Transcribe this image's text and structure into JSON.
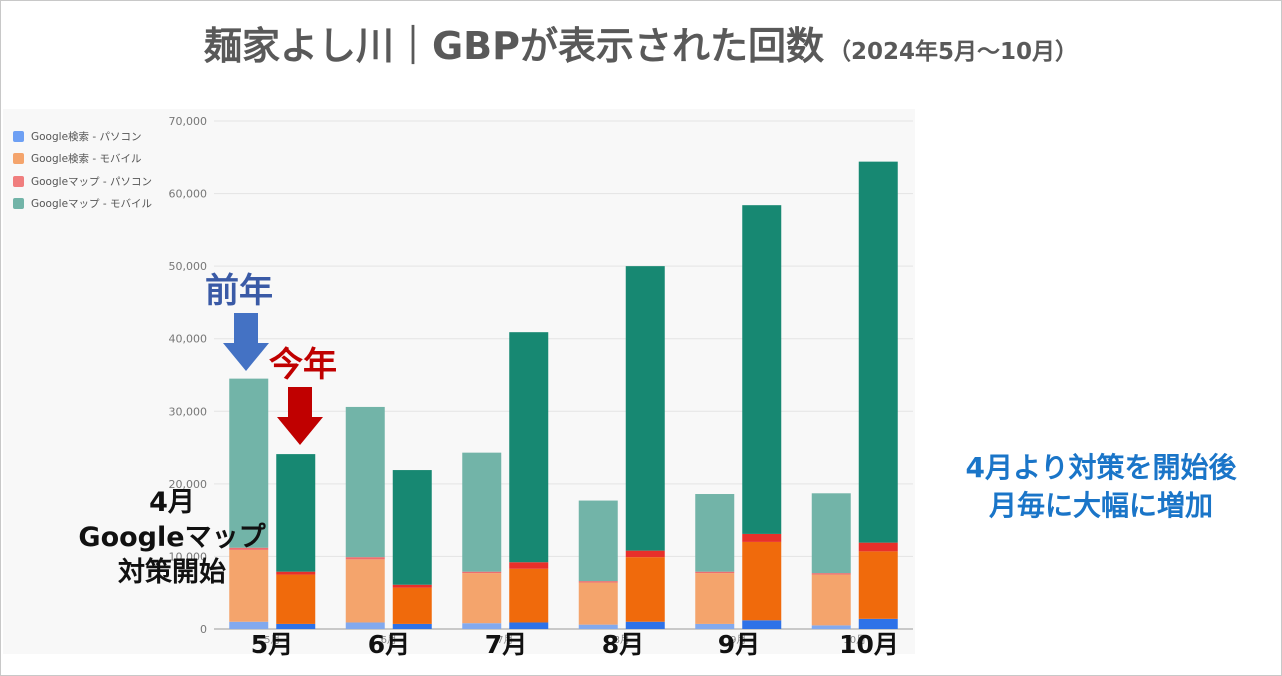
{
  "title": {
    "main": "麺家よし川｜GBPが表示された回数",
    "sub": "（2024年5月～10月）"
  },
  "annotations": {
    "prev_year": "前年",
    "this_year": "今年",
    "left_note": [
      "4月",
      "Googleマップ",
      "対策開始"
    ],
    "right_note": [
      "4月より対策を開始後",
      "月毎に大幅に増加"
    ]
  },
  "month_labels": [
    "5月",
    "6月",
    "7月",
    "8月",
    "9月",
    "10月"
  ],
  "colors": {
    "arrow_prev": "#4472c4",
    "arrow_this": "#c00000",
    "prev_year_series": [
      "#82a9ee",
      "#f4a46c",
      "#ee6e6e",
      "#72b4a8"
    ],
    "this_year_series": [
      "#2e72e8",
      "#f06a0c",
      "#e8302a",
      "#178872"
    ]
  },
  "chart_data": {
    "type": "bar",
    "stacked": true,
    "grouped_by": "year",
    "categories": [
      "5月",
      "6月",
      "7月",
      "8月",
      "9月",
      "10月"
    ],
    "groups": [
      "前年",
      "今年"
    ],
    "ylim": [
      0,
      70000
    ],
    "yticks": [
      "0",
      "10,000",
      "20,000",
      "30,000",
      "40,000",
      "50,000",
      "60,000",
      "70,000"
    ],
    "x_tick_labels": [
      "5月",
      "6月",
      "7月",
      "8月",
      "9月",
      "10月"
    ],
    "grid": true,
    "legend_position": "top-left",
    "legend": [
      "Google検索 - パソコン",
      "Google検索 - モバイル",
      "Googleマップ - パソコン",
      "Googleマップ - モバイル"
    ],
    "series": [
      {
        "name": "Google検索 - パソコン",
        "prev": [
          1000,
          900,
          800,
          600,
          700,
          500
        ],
        "current": [
          700,
          700,
          900,
          1000,
          1200,
          1400
        ]
      },
      {
        "name": "Google検索 - モバイル",
        "prev": [
          9900,
          8700,
          6900,
          5800,
          7000,
          7000
        ],
        "current": [
          6800,
          5000,
          7400,
          8900,
          10800,
          9300
        ]
      },
      {
        "name": "Googleマップ - パソコン",
        "prev": [
          300,
          300,
          200,
          200,
          200,
          200
        ],
        "current": [
          400,
          400,
          900,
          900,
          1100,
          1200
        ]
      },
      {
        "name": "Googleマップ - モバイル",
        "prev": [
          23300,
          20700,
          16400,
          11100,
          10700,
          11000
        ],
        "current": [
          16200,
          15800,
          31700,
          39200,
          45300,
          52500
        ]
      }
    ]
  }
}
